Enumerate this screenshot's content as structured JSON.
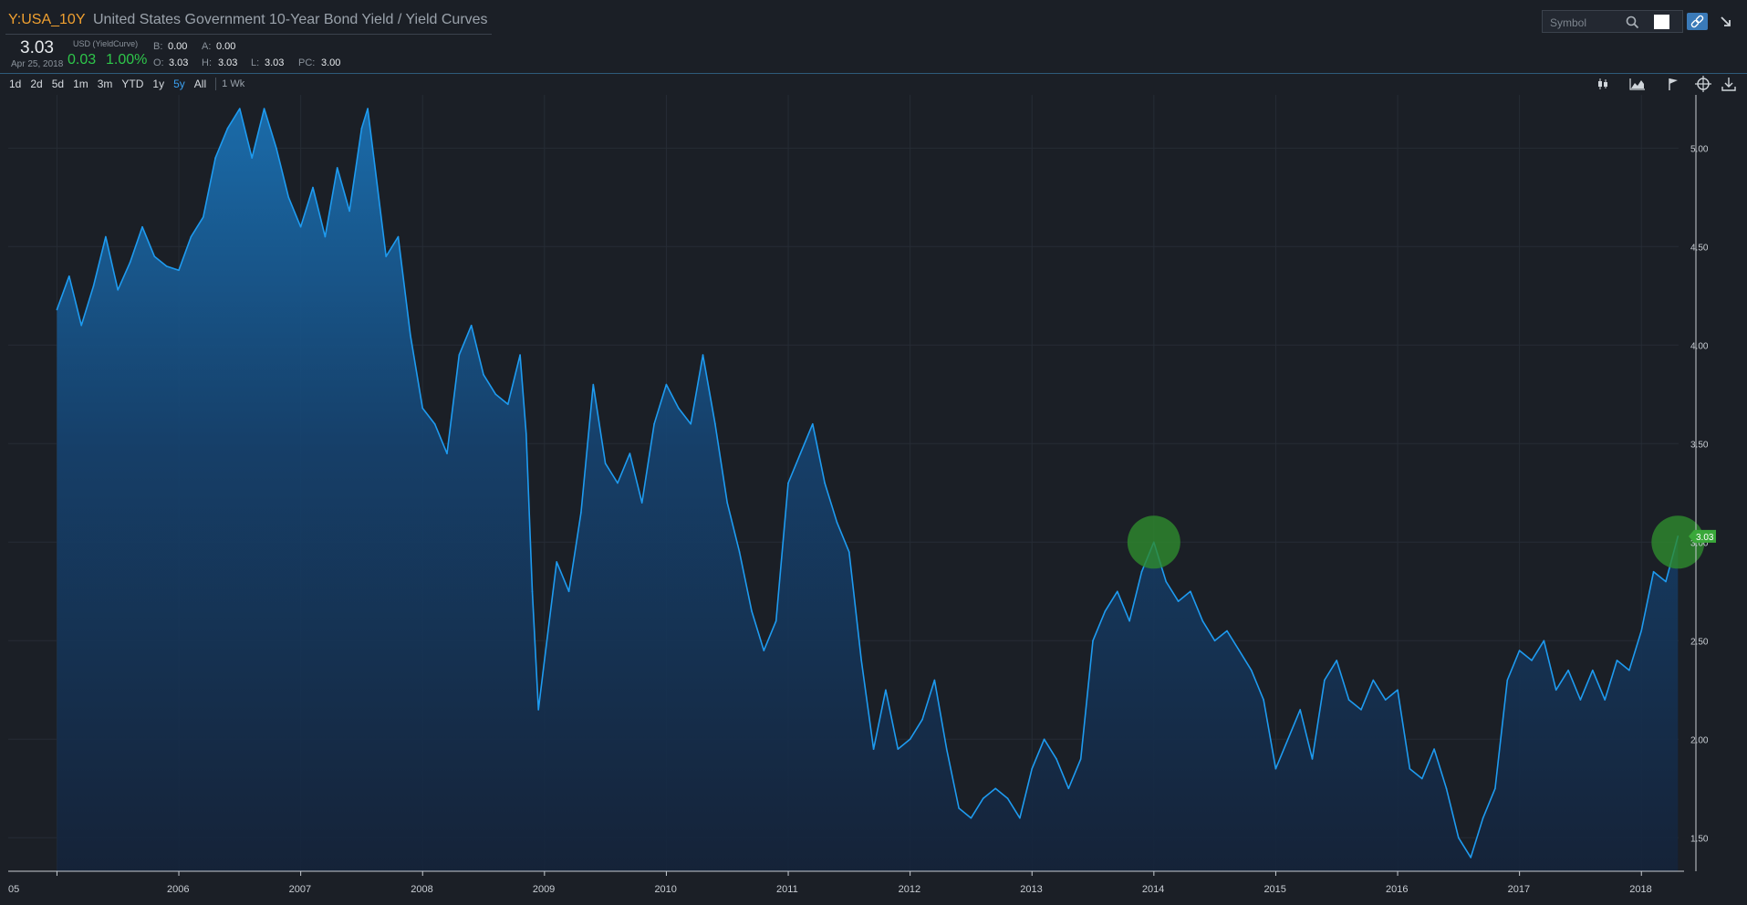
{
  "header": {
    "symbol": "Y:USA_10Y",
    "title": "United States Government 10-Year Bond Yield  / Yield Curves",
    "price": "3.03",
    "date": "Apr 25, 2018",
    "currency": "USD (YieldCurve)",
    "change": "0.03",
    "change_pct": "1.00%",
    "quote": {
      "b_label": "B:",
      "b": "0.00",
      "a_label": "A:",
      "a": "0.00",
      "o_label": "O:",
      "o": "3.03",
      "h_label": "H:",
      "h": "3.03",
      "l_label": "L:",
      "l": "3.03",
      "pc_label": "PC:",
      "pc": "3.00"
    }
  },
  "range_buttons": [
    "1d",
    "2d",
    "5d",
    "1m",
    "3m",
    "YTD",
    "1y",
    "5y",
    "All"
  ],
  "active_range": "5y",
  "interval": "1 Wk",
  "search": {
    "placeholder": "Symbol"
  },
  "toolbar_icons": [
    "candlestick-icon",
    "area-chart-icon",
    "flag-icon",
    "crosshair-icon",
    "download-icon"
  ],
  "colors": {
    "background": "#1b1f26",
    "line": "#1e9bf0",
    "symbol": "#f0a030",
    "up": "#2ec64a",
    "highlight": "#2e8b2e"
  },
  "chart_data": {
    "type": "area",
    "title": "",
    "xlabel": "",
    "ylabel": "",
    "ylim": [
      1.33,
      5.27
    ],
    "y_ticks": [
      "1.50",
      "2.00",
      "2.50",
      "3.00",
      "3.50",
      "4.00",
      "4.50",
      "5.00"
    ],
    "x_ticks": [
      "05",
      "2006",
      "2007",
      "2008",
      "2009",
      "2010",
      "2011",
      "2012",
      "2013",
      "2014",
      "2015",
      "2016",
      "2017",
      "2018"
    ],
    "last_value_label": "3.03",
    "grid": true,
    "series": [
      {
        "x": [
          2005.0,
          2005.1,
          2005.2,
          2005.3,
          2005.4,
          2005.5,
          2005.6,
          2005.7,
          2005.8,
          2005.9,
          2006.0,
          2006.1,
          2006.2,
          2006.3,
          2006.4,
          2006.5,
          2006.6,
          2006.7,
          2006.8,
          2006.9,
          2007.0,
          2007.1,
          2007.2,
          2007.3,
          2007.4,
          2007.5,
          2007.55,
          2007.6,
          2007.7,
          2007.8,
          2007.9,
          2008.0,
          2008.1,
          2008.2,
          2008.3,
          2008.4,
          2008.5,
          2008.6,
          2008.7,
          2008.8,
          2008.85,
          2008.9,
          2008.95,
          2009.0,
          2009.1,
          2009.2,
          2009.3,
          2009.4,
          2009.5,
          2009.6,
          2009.7,
          2009.8,
          2009.9,
          2010.0,
          2010.1,
          2010.2,
          2010.3,
          2010.4,
          2010.5,
          2010.6,
          2010.7,
          2010.8,
          2010.9,
          2011.0,
          2011.1,
          2011.2,
          2011.3,
          2011.4,
          2011.5,
          2011.6,
          2011.7,
          2011.8,
          2011.9,
          2012.0,
          2012.1,
          2012.2,
          2012.3,
          2012.4,
          2012.5,
          2012.6,
          2012.7,
          2012.8,
          2012.9,
          2013.0,
          2013.1,
          2013.2,
          2013.3,
          2013.4,
          2013.5,
          2013.6,
          2013.7,
          2013.8,
          2013.9,
          2014.0,
          2014.1,
          2014.2,
          2014.3,
          2014.4,
          2014.5,
          2014.6,
          2014.7,
          2014.8,
          2014.9,
          2015.0,
          2015.1,
          2015.2,
          2015.3,
          2015.4,
          2015.5,
          2015.6,
          2015.7,
          2015.8,
          2015.9,
          2016.0,
          2016.1,
          2016.2,
          2016.3,
          2016.4,
          2016.5,
          2016.6,
          2016.7,
          2016.8,
          2016.9,
          2017.0,
          2017.1,
          2017.2,
          2017.3,
          2017.4,
          2017.5,
          2017.6,
          2017.7,
          2017.8,
          2017.9,
          2018.0,
          2018.1,
          2018.2,
          2018.3
        ],
        "values": [
          4.18,
          4.35,
          4.1,
          4.3,
          4.55,
          4.28,
          4.42,
          4.6,
          4.45,
          4.4,
          4.38,
          4.55,
          4.65,
          4.95,
          5.1,
          5.2,
          4.95,
          5.2,
          5.0,
          4.75,
          4.6,
          4.8,
          4.55,
          4.9,
          4.68,
          5.1,
          5.2,
          4.95,
          4.45,
          4.55,
          4.05,
          3.68,
          3.6,
          3.45,
          3.95,
          4.1,
          3.85,
          3.75,
          3.7,
          3.95,
          3.55,
          2.75,
          2.15,
          2.4,
          2.9,
          2.75,
          3.15,
          3.8,
          3.4,
          3.3,
          3.45,
          3.2,
          3.6,
          3.8,
          3.68,
          3.6,
          3.95,
          3.6,
          3.2,
          2.95,
          2.65,
          2.45,
          2.6,
          3.3,
          3.45,
          3.6,
          3.3,
          3.1,
          2.95,
          2.4,
          1.95,
          2.25,
          1.95,
          2.0,
          2.1,
          2.3,
          1.95,
          1.65,
          1.6,
          1.7,
          1.75,
          1.7,
          1.6,
          1.85,
          2.0,
          1.9,
          1.75,
          1.9,
          2.5,
          2.65,
          2.75,
          2.6,
          2.85,
          3.0,
          2.8,
          2.7,
          2.75,
          2.6,
          2.5,
          2.55,
          2.45,
          2.35,
          2.2,
          1.85,
          2.0,
          2.15,
          1.9,
          2.3,
          2.4,
          2.2,
          2.15,
          2.3,
          2.2,
          2.25,
          1.85,
          1.8,
          1.95,
          1.75,
          1.5,
          1.4,
          1.6,
          1.75,
          2.3,
          2.45,
          2.4,
          2.5,
          2.25,
          2.35,
          2.2,
          2.35,
          2.2,
          2.4,
          2.35,
          2.55,
          2.85,
          2.8,
          3.03
        ]
      }
    ],
    "highlights": [
      {
        "x": 2014.0,
        "value": 3.0
      },
      {
        "x": 2018.3,
        "value": 3.0
      }
    ]
  }
}
